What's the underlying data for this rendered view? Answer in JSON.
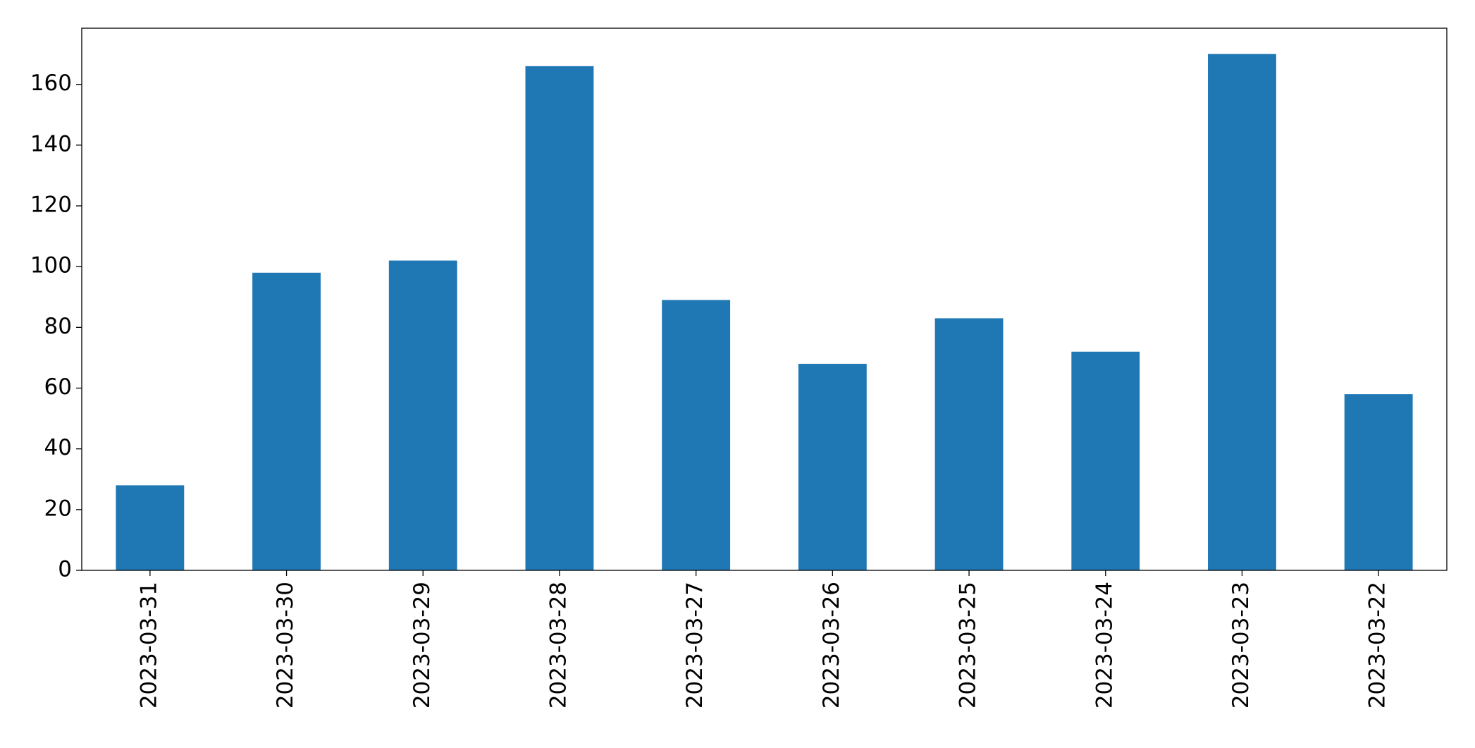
{
  "chart_data": {
    "type": "bar",
    "categories": [
      "2023-03-31",
      "2023-03-30",
      "2023-03-29",
      "2023-03-28",
      "2023-03-27",
      "2023-03-26",
      "2023-03-25",
      "2023-03-24",
      "2023-03-23",
      "2023-03-22"
    ],
    "values": [
      28,
      98,
      102,
      166,
      89,
      68,
      83,
      72,
      170,
      58
    ],
    "color": "#1f77b4",
    "ylim": [
      0,
      178.5
    ],
    "yticks": [
      0,
      20,
      40,
      60,
      80,
      100,
      120,
      140,
      160
    ],
    "grid": false
  }
}
